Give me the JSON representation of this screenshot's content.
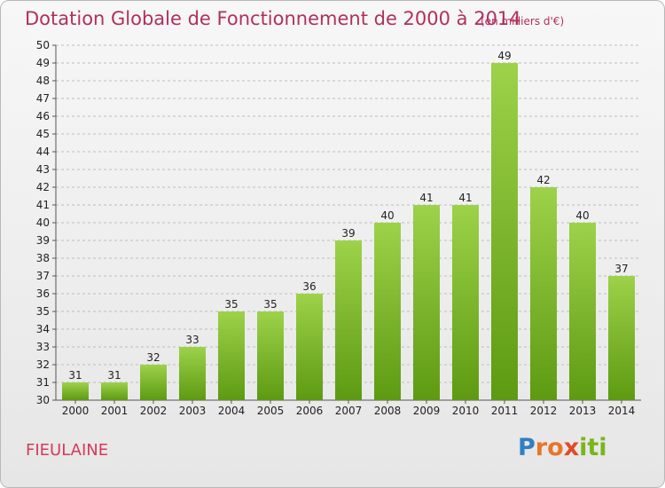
{
  "header": {
    "title": "Dotation Globale de Fonctionnement de 2000 à 2014",
    "unit": "(en milliers d'€)"
  },
  "footer": {
    "commune": "FIEULAINE",
    "logo": [
      "P",
      "r",
      "o",
      "x",
      "i",
      "ti"
    ]
  },
  "colors": {
    "title": "#b0305e",
    "commune": "#d43a5c",
    "bar_top": "#9dd24a",
    "bar_bottom": "#5d9a12",
    "grid": "#bdbdbd"
  },
  "chart_data": {
    "type": "bar",
    "title": "Dotation Globale de Fonctionnement de 2000 à 2014",
    "categories": [
      "2000",
      "2001",
      "2002",
      "2003",
      "2004",
      "2005",
      "2006",
      "2007",
      "2008",
      "2009",
      "2010",
      "2011",
      "2012",
      "2013",
      "2014"
    ],
    "values": [
      31,
      31,
      32,
      33,
      35,
      35,
      36,
      39,
      40,
      41,
      41,
      49,
      42,
      40,
      37
    ],
    "ylim": [
      30,
      50
    ],
    "yticks": [
      30,
      31,
      32,
      33,
      34,
      35,
      36,
      37,
      38,
      39,
      40,
      41,
      42,
      43,
      44,
      45,
      46,
      47,
      48,
      49,
      50
    ],
    "grid": true,
    "xlabel": "",
    "ylabel": ""
  }
}
